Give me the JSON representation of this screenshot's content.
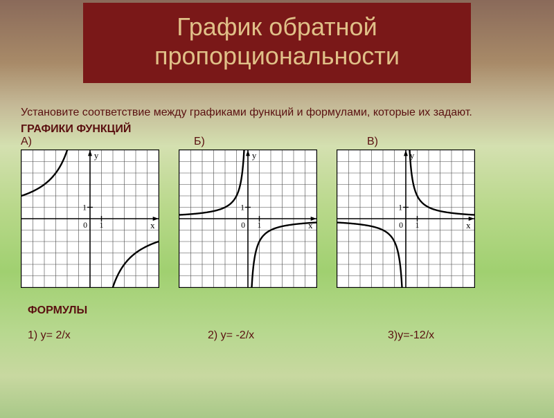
{
  "title": {
    "line1": "График обратной",
    "line2": "пропорциональности"
  },
  "instruction": "Установите соответствие между графиками функций и формулами, которые их задают.",
  "graphs_header": "ГРАФИКИ ФУНКЦИЙ",
  "labels": [
    "А)",
    "Б)",
    "В)"
  ],
  "formulas_header": "ФОРМУЛЫ",
  "formulas": [
    "1) y= 2/x",
    "2) y= -2/x",
    "3)y=-12/x"
  ],
  "charts": {
    "grid": {
      "cells": 12,
      "stroke": "#444",
      "minor_stroke_w": 0.6
    },
    "axis": {
      "stroke": "#000",
      "stroke_w": 1.6,
      "arrow": 6,
      "y_label": "y",
      "x_label": "x",
      "tick_label0": "0",
      "tick_label1": "1"
    },
    "curve": {
      "stroke": "#000",
      "stroke_w": 2.4
    },
    "A": {
      "type": "hyperbola",
      "k": -12,
      "quadrants": "II_IV"
    },
    "B": {
      "type": "hyperbola",
      "k": -2,
      "quadrants": "II_IV"
    },
    "C": {
      "type": "hyperbola",
      "k": 2,
      "quadrants": "I_III"
    }
  }
}
